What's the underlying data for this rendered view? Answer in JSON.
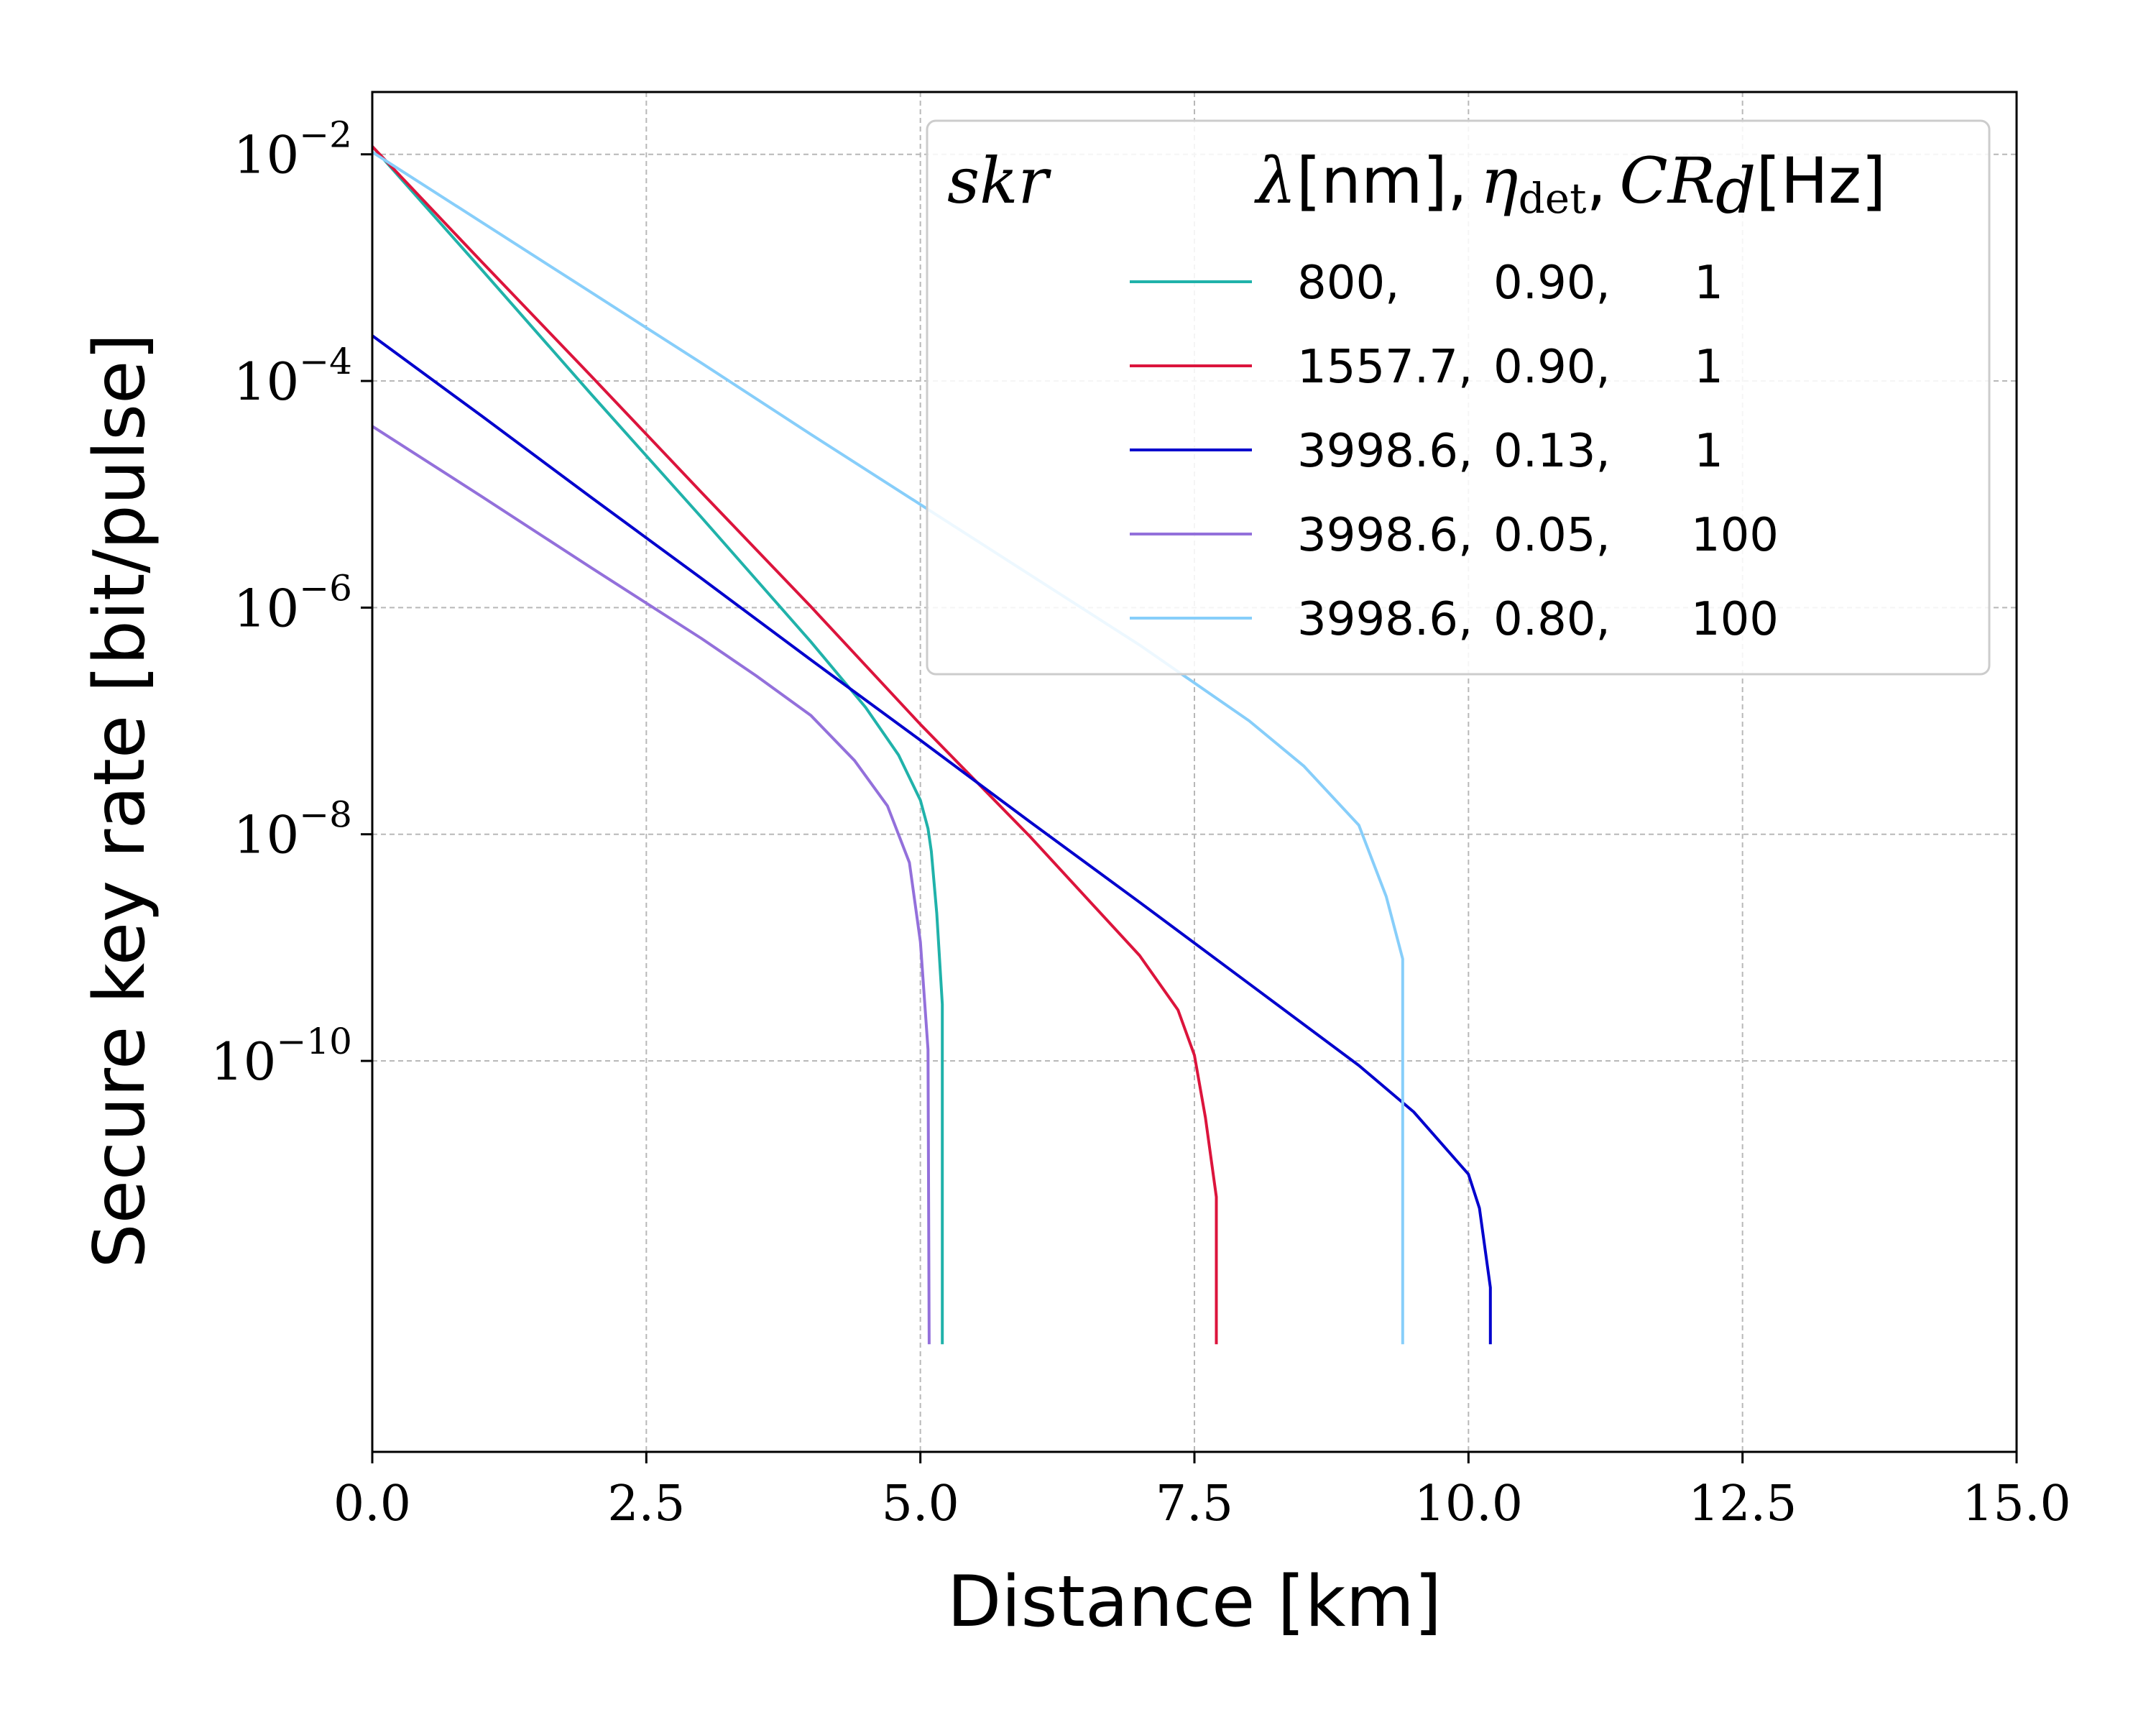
{
  "chart_data": {
    "type": "line",
    "xlabel": "Distance [km]",
    "ylabel": "Secure key rate [bit/pulse]",
    "xlim": [
      0,
      15
    ],
    "ylim_log10": [
      -13.45,
      -1.45
    ],
    "yscale": "log",
    "grid": true,
    "legend_placement": "top-right",
    "x_ticks": [
      "0.0",
      "2.5",
      "5.0",
      "7.5",
      "10.0",
      "12.5",
      "15.0"
    ],
    "y_ticks": [
      {
        "base": "10",
        "exp": "−2",
        "log": -2
      },
      {
        "base": "10",
        "exp": "−4",
        "log": -4
      },
      {
        "base": "10",
        "exp": "−6",
        "log": -6
      },
      {
        "base": "10",
        "exp": "−8",
        "log": -8
      },
      {
        "base": "10",
        "exp": "−10",
        "log": -10
      }
    ],
    "legend": {
      "title_left": "skr",
      "title_right": {
        "lambda": "λ",
        "nm": "[nm],",
        "eta": "η",
        "eta_sub": "det",
        "comma": ",",
        "cr": "CR",
        "cr_sub": "d",
        "hz": "[Hz]"
      }
    },
    "series": [
      {
        "name": "800,      0.90,      1",
        "label_wl": "800,",
        "label_eta": "0.90,",
        "label_cr": "1",
        "color": "#20b2aa",
        "points": [
          [
            0,
            -1.93
          ],
          [
            1,
            -3.02
          ],
          [
            2,
            -4.12
          ],
          [
            3,
            -5.2
          ],
          [
            4,
            -6.3
          ],
          [
            4.5,
            -6.88
          ],
          [
            4.8,
            -7.3
          ],
          [
            5.0,
            -7.7
          ],
          [
            5.07,
            -7.95
          ],
          [
            5.1,
            -8.15
          ],
          [
            5.15,
            -8.7
          ],
          [
            5.2,
            -9.5
          ],
          [
            5.2,
            -12.5
          ]
        ]
      },
      {
        "name": "1557.7, 0.90,      1",
        "label_wl": "1557.7,",
        "label_eta": "0.90,",
        "label_cr": "1",
        "color": "#dc143c",
        "points": [
          [
            0,
            -1.93
          ],
          [
            1,
            -2.95
          ],
          [
            2,
            -3.96
          ],
          [
            3,
            -4.98
          ],
          [
            4,
            -5.99
          ],
          [
            5,
            -7.03
          ],
          [
            6,
            -8.02
          ],
          [
            7,
            -9.07
          ],
          [
            7.35,
            -9.55
          ],
          [
            7.5,
            -9.95
          ],
          [
            7.6,
            -10.5
          ],
          [
            7.7,
            -11.2
          ],
          [
            7.7,
            -12.5
          ]
        ]
      },
      {
        "name": "3998.6, 0.13,      1",
        "label_wl": "3998.6,",
        "label_eta": "0.13,",
        "label_cr": "1",
        "color": "#0000cd",
        "points": [
          [
            0,
            -3.6
          ],
          [
            1,
            -4.31
          ],
          [
            2,
            -5.03
          ],
          [
            3,
            -5.74
          ],
          [
            4,
            -6.46
          ],
          [
            5,
            -7.17
          ],
          [
            6,
            -7.89
          ],
          [
            7,
            -8.6
          ],
          [
            8,
            -9.32
          ],
          [
            9,
            -10.04
          ],
          [
            9.5,
            -10.45
          ],
          [
            10.0,
            -11.0
          ],
          [
            10.1,
            -11.3
          ],
          [
            10.2,
            -12.0
          ],
          [
            10.2,
            -12.5
          ]
        ]
      },
      {
        "name": "3998.6, 0.05,      100",
        "label_wl": "3998.6,",
        "label_eta": "0.05,",
        "label_cr": "100",
        "color": "#9370db",
        "points": [
          [
            0,
            -4.4
          ],
          [
            1,
            -5.02
          ],
          [
            2,
            -5.65
          ],
          [
            3,
            -6.27
          ],
          [
            3.5,
            -6.6
          ],
          [
            4.0,
            -6.95
          ],
          [
            4.4,
            -7.35
          ],
          [
            4.7,
            -7.75
          ],
          [
            4.9,
            -8.25
          ],
          [
            5.0,
            -8.95
          ],
          [
            5.07,
            -9.9
          ],
          [
            5.08,
            -12.5
          ]
        ]
      },
      {
        "name": "3998.6, 0.80,      100",
        "label_wl": "3998.6,",
        "label_eta": "0.80,",
        "label_cr": "100",
        "color": "#87cefa",
        "points": [
          [
            0,
            -1.98
          ],
          [
            1,
            -2.6
          ],
          [
            2,
            -3.22
          ],
          [
            3,
            -3.84
          ],
          [
            4,
            -4.47
          ],
          [
            5,
            -5.09
          ],
          [
            6,
            -5.71
          ],
          [
            7,
            -6.33
          ],
          [
            8,
            -7.0
          ],
          [
            8.5,
            -7.4
          ],
          [
            9.0,
            -7.92
          ],
          [
            9.25,
            -8.55
          ],
          [
            9.4,
            -9.1
          ],
          [
            9.4,
            -12.5
          ]
        ]
      }
    ]
  }
}
